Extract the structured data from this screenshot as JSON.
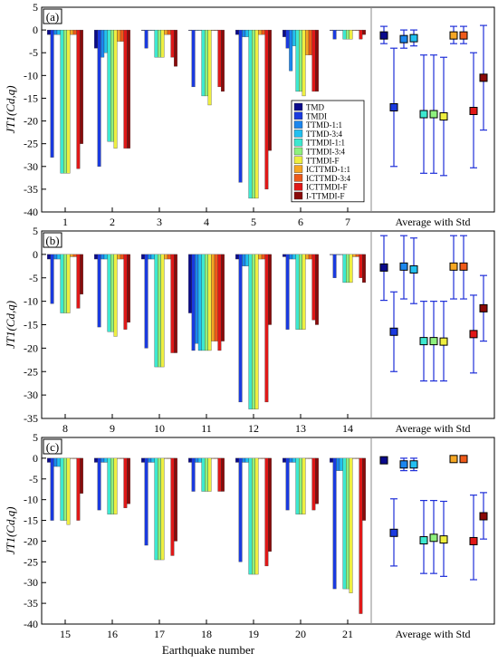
{
  "figure": {
    "xlabel": "Earthquake number",
    "avg_label": "Average with Std"
  },
  "legend": {
    "entries": [
      "TMD",
      "TMDI",
      "TTMD-1:1",
      "TTMD-3:4",
      "TTMDI-1:1",
      "TTMDI-3:4",
      "TTMDI-F",
      "ICTTMD-1:1",
      "ICTTMD-3:4",
      "ICTTMDI-F",
      "I-TTMDI-F"
    ],
    "colors": [
      "#0a0a8c",
      "#1a3adf",
      "#1c86ee",
      "#22c0f0",
      "#3de8d0",
      "#8ef07e",
      "#eeee40",
      "#f5a623",
      "#ee5a1a",
      "#e01818",
      "#8a0a0a"
    ]
  },
  "chart_data": [
    {
      "type": "bar",
      "panel_label": "(a)",
      "ylabel": "JT1(Cd,q)",
      "ylim": [
        -40,
        5
      ],
      "yticks": [
        5,
        0,
        -5,
        -10,
        -15,
        -20,
        -25,
        -30,
        -35,
        -40
      ],
      "categories": [
        "1",
        "2",
        "3",
        "4",
        "5",
        "6",
        "7"
      ],
      "series": [
        {
          "name": "TMD",
          "values": [
            -1,
            -4,
            0,
            0,
            -1,
            -1.5,
            0
          ]
        },
        {
          "name": "TMDI",
          "values": [
            -28,
            -30,
            -4,
            -12.5,
            -33.5,
            -4,
            -2
          ]
        },
        {
          "name": "TTMD-1:1",
          "values": [
            -1,
            -6,
            0,
            0,
            -1.5,
            -9,
            0
          ]
        },
        {
          "name": "TTMD-3:4",
          "values": [
            -1,
            -5,
            0,
            0,
            -1.5,
            -3.5,
            0
          ]
        },
        {
          "name": "TTMDI-1:1",
          "values": [
            -31.5,
            -24.5,
            -6,
            -14.5,
            -37,
            -13.5,
            -2
          ]
        },
        {
          "name": "TTMDI-3:4",
          "values": [
            -31.5,
            -24.5,
            -6,
            -14.5,
            -37,
            -13.5,
            -2
          ]
        },
        {
          "name": "TTMDI-F",
          "values": [
            -31.5,
            -26,
            -6,
            -16.5,
            -37,
            -14.5,
            -2
          ]
        },
        {
          "name": "ICTTMD-1:1",
          "values": [
            -1,
            -2.5,
            -1,
            0,
            -1,
            -5.5,
            0
          ]
        },
        {
          "name": "ICTTMD-3:4",
          "values": [
            -1,
            -2.5,
            -1,
            0,
            -1,
            -5.5,
            0
          ]
        },
        {
          "name": "ICTTMDI-F",
          "values": [
            -30.5,
            -26,
            -6,
            -12.5,
            -35,
            -13.5,
            -2
          ]
        },
        {
          "name": "I-TTMDI-F",
          "values": [
            -25,
            -26,
            -8,
            -13.5,
            -26.5,
            -13.5,
            -1
          ]
        }
      ],
      "average": {
        "means": [
          -1.2,
          -17,
          -2,
          -1.8,
          -18.5,
          -18.5,
          -19,
          -1.2,
          -1.2,
          -17.8,
          -10.5
        ],
        "lower": [
          -3,
          -30,
          -4,
          -3.5,
          -31.5,
          -31.5,
          -32,
          -3,
          -3,
          -30.3,
          -22
        ],
        "upper": [
          0.8,
          -4,
          0,
          0,
          -5.5,
          -5.5,
          -6,
          0.8,
          0.8,
          -5,
          1
        ]
      }
    },
    {
      "type": "bar",
      "panel_label": "(b)",
      "ylabel": "JT1(Cd,q)",
      "ylim": [
        -35,
        5
      ],
      "yticks": [
        5,
        0,
        -5,
        -10,
        -15,
        -20,
        -25,
        -30,
        -35
      ],
      "categories": [
        "8",
        "9",
        "10",
        "11",
        "12",
        "13",
        "14"
      ],
      "series": [
        {
          "name": "TMD",
          "values": [
            -1,
            -1,
            -1,
            -12.5,
            -1,
            -0.5,
            0
          ]
        },
        {
          "name": "TMDI",
          "values": [
            -10.5,
            -15.5,
            -20,
            -20.5,
            -31.5,
            -16,
            -5
          ]
        },
        {
          "name": "TTMD-1:1",
          "values": [
            -1,
            -1,
            -1,
            -19,
            -2.5,
            -1,
            0
          ]
        },
        {
          "name": "TTMD-3:4",
          "values": [
            -1,
            -1,
            -1,
            -20.5,
            -2.5,
            -1,
            0
          ]
        },
        {
          "name": "TTMDI-1:1",
          "values": [
            -12.5,
            -16.5,
            -24,
            -20.5,
            -33,
            -16,
            -6
          ]
        },
        {
          "name": "TTMDI-3:4",
          "values": [
            -12.5,
            -16.5,
            -24,
            -20.5,
            -33,
            -16,
            -6
          ]
        },
        {
          "name": "TTMDI-F",
          "values": [
            -12.5,
            -17.5,
            -24,
            -20.5,
            -33,
            -16,
            -6
          ]
        },
        {
          "name": "ICTTMD-1:1",
          "values": [
            -0.5,
            -1,
            -1,
            -18.5,
            -1,
            -1,
            -0.5
          ]
        },
        {
          "name": "ICTTMD-3:4",
          "values": [
            -0.5,
            -1,
            -1,
            -18.5,
            -1,
            -1,
            -0.5
          ]
        },
        {
          "name": "ICTTMDI-F",
          "values": [
            -11.5,
            -16,
            -21,
            -20.5,
            -31.5,
            -14,
            -5
          ]
        },
        {
          "name": "I-TTMDI-F",
          "values": [
            -8.5,
            -14.5,
            -21,
            -18.5,
            -15,
            -15,
            -6
          ]
        }
      ],
      "average": {
        "means": [
          -2.8,
          -16.5,
          -2.6,
          -3.2,
          -18.5,
          -18.5,
          -18.6,
          -2.6,
          -2.6,
          -17,
          -11.5
        ],
        "lower": [
          -9.8,
          -25,
          -9.5,
          -10.5,
          -27,
          -27,
          -27,
          -9.5,
          -9.5,
          -25.3,
          -18.5
        ],
        "upper": [
          4,
          -8,
          4,
          3.5,
          -10,
          -10,
          -10,
          4,
          4,
          -8.7,
          -4.5
        ]
      }
    },
    {
      "type": "bar",
      "panel_label": "(c)",
      "ylabel": "JT1(Cd,q)",
      "ylim": [
        -40,
        5
      ],
      "yticks": [
        5,
        0,
        -5,
        -10,
        -15,
        -20,
        -25,
        -30,
        -35,
        -40
      ],
      "categories": [
        "15",
        "16",
        "17",
        "18",
        "19",
        "20",
        "21"
      ],
      "series": [
        {
          "name": "TMD",
          "values": [
            -1,
            -1,
            -1,
            -1,
            -1,
            -1,
            -1
          ]
        },
        {
          "name": "TMDI",
          "values": [
            -15,
            -12.5,
            -21,
            -8,
            -25,
            -12.5,
            -31.5
          ]
        },
        {
          "name": "TTMD-1:1",
          "values": [
            -2,
            -1,
            -1,
            -1,
            -1,
            -1,
            -3
          ]
        },
        {
          "name": "TTMD-3:4",
          "values": [
            -2,
            -1,
            -1,
            -1,
            -1,
            -1,
            -3
          ]
        },
        {
          "name": "TTMDI-1:1",
          "values": [
            -15,
            -13.5,
            -24.5,
            -8,
            -28,
            -13.5,
            -31.5
          ]
        },
        {
          "name": "TTMDI-3:4",
          "values": [
            -15,
            -13.5,
            -24.5,
            -8,
            -28,
            -13.5,
            -31.5
          ]
        },
        {
          "name": "TTMDI-F",
          "values": [
            -16,
            -13.5,
            -24.5,
            -8,
            -28,
            -13.5,
            -32.5
          ]
        },
        {
          "name": "ICTTMD-1:1",
          "values": [
            0,
            0,
            0,
            0,
            0,
            0,
            0
          ]
        },
        {
          "name": "ICTTMD-3:4",
          "values": [
            0,
            0,
            0,
            0,
            0,
            0,
            0
          ]
        },
        {
          "name": "ICTTMDI-F",
          "values": [
            -15,
            -12,
            -23.5,
            -8,
            -26,
            -12.5,
            -37.5
          ]
        },
        {
          "name": "I-TTMDI-F",
          "values": [
            -8.5,
            -11,
            -20,
            -8,
            -22.5,
            -11,
            -15
          ]
        }
      ],
      "average": {
        "means": [
          -0.5,
          -18,
          -1.5,
          -1.5,
          -19.8,
          -19.2,
          -19.6,
          -0.2,
          -0.2,
          -20,
          -14
        ],
        "lower": [
          -1,
          -26,
          -3,
          -3,
          -27.8,
          -27.8,
          -28.5,
          -0.4,
          -0.4,
          -29.3,
          -19.5
        ],
        "upper": [
          0,
          -9.8,
          0,
          0,
          -10.2,
          -10.2,
          -10.4,
          0,
          0,
          -8.9,
          -8.3
        ]
      }
    }
  ]
}
